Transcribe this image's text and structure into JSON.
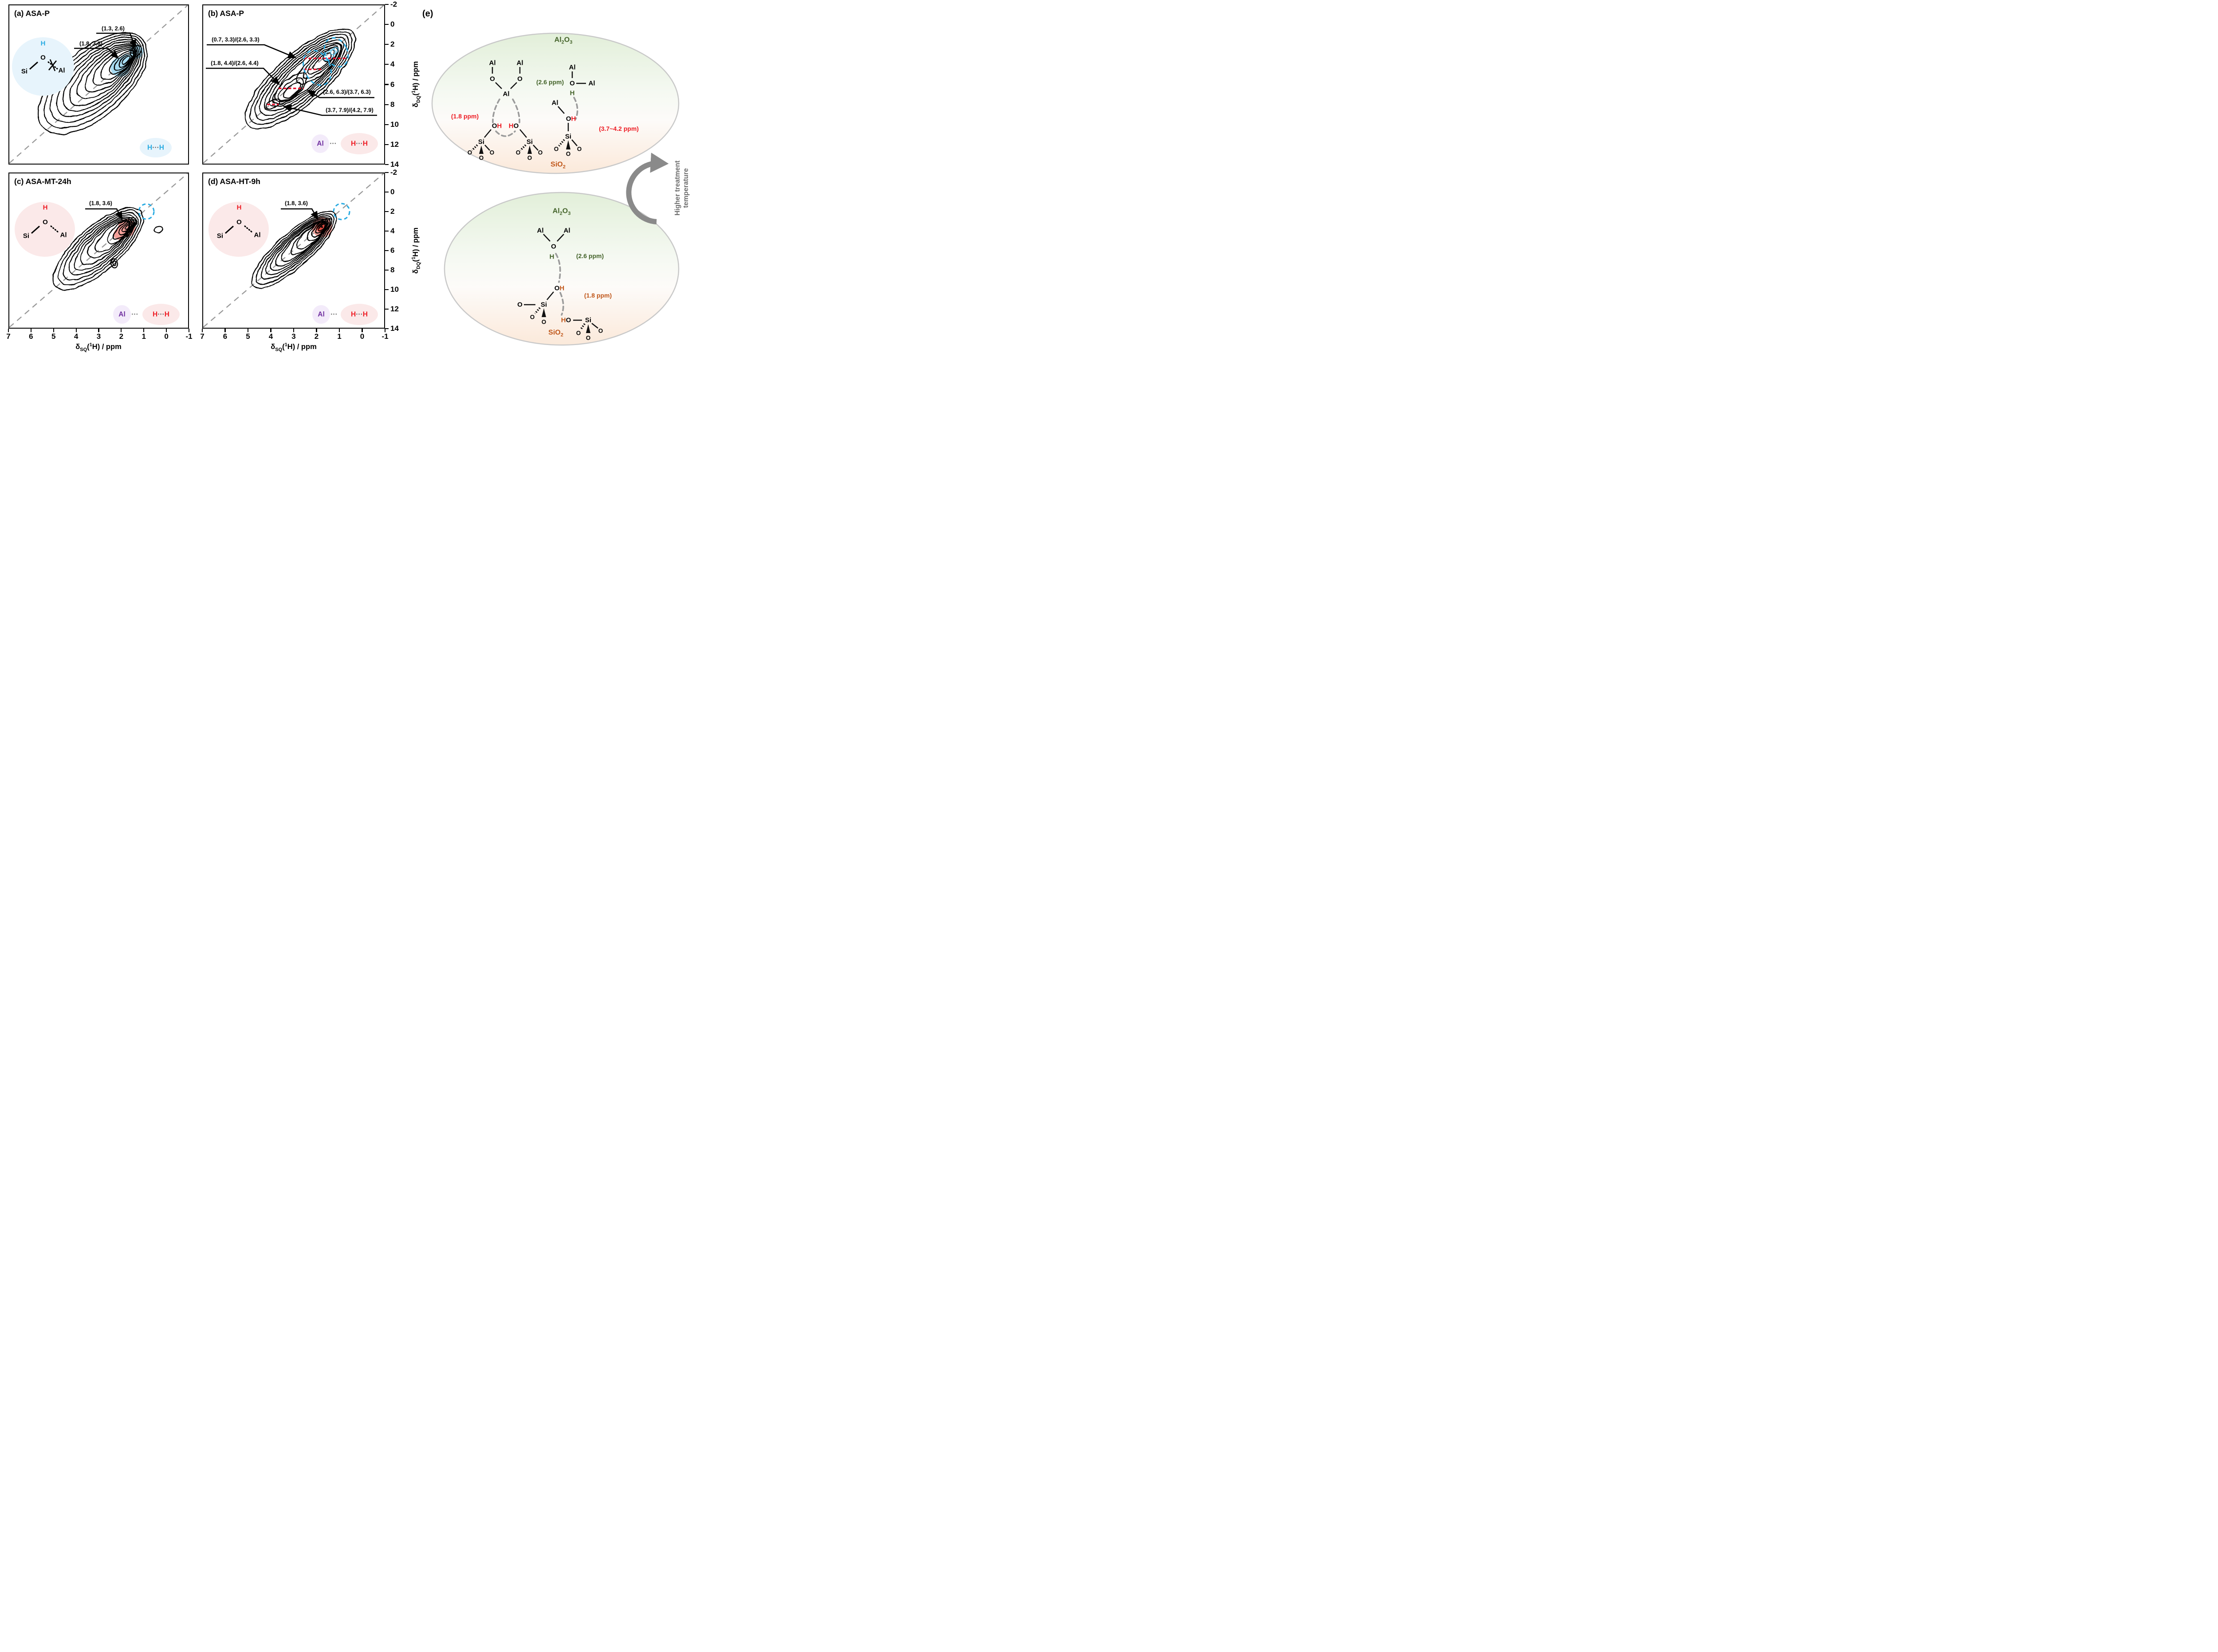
{
  "colors": {
    "cyan": "#29ABE2",
    "red": "#ED1C24",
    "purple": "#7030A0",
    "dark_green": "#44632A",
    "orange": "#C0571A",
    "arrow_gray": "#8A8A8A",
    "peak_blue_fill": "#A8DCF2",
    "peak_pink_fill": "#F4A09A",
    "peak_red_fill": "#DE4A3F",
    "inset_blue_bg": "#E7F4FC",
    "inset_pink_bg": "#FBE9E9",
    "lavender_bg": "#F3EBFA",
    "dashed_gray": "#999999"
  },
  "axis": {
    "sym": "δ",
    "x_sub": "SQ",
    "y_sub": "DQ",
    "open": "(",
    "sup": "1",
    "close": "H) / ppm"
  },
  "nmr": {
    "x_ticks": [
      7,
      6,
      5,
      4,
      3,
      2,
      1,
      0,
      -1
    ],
    "y_ticks": [
      -2,
      0,
      2,
      4,
      6,
      8,
      10,
      12,
      14
    ]
  },
  "sym": {
    "h": "H",
    "al": "Al",
    "si": "Si",
    "o": "O",
    "dots": "···"
  },
  "chart_data": [
    {
      "id": "a",
      "type": "contour",
      "title": "(a) ASA-P",
      "xlabel": "dSQ(1H) / ppm",
      "ylabel": "dDQ(1H) / ppm",
      "xlim": [
        7,
        -1
      ],
      "ylim": [
        -2,
        14
      ],
      "grid": false,
      "diagonal": "dDQ = 2 x dSQ (dashed)",
      "annotations": [
        {
          "label": "(1.3, 2.6)",
          "sq": 1.3,
          "dq": 2.6
        },
        {
          "label": "(1.8, 3.6)",
          "sq": 1.8,
          "dq": 3.6
        }
      ],
      "highlighted_peaks": [
        [
          1.3,
          2.6
        ],
        [
          1.8,
          3.6
        ]
      ],
      "inset_atoms": [
        "H",
        "O",
        "Si",
        "Al"
      ],
      "legend": "H···H"
    },
    {
      "id": "b",
      "type": "contour",
      "title": "(b) ASA-P",
      "xlabel": "dSQ(1H) / ppm",
      "ylabel": "dDQ(1H) / ppm",
      "xlim": [
        7,
        -1
      ],
      "ylim": [
        -2,
        14
      ],
      "grid": false,
      "annotations": [
        {
          "label": "(0.7, 3.3)/(2.6, 3.3)",
          "pairs": [
            [
              0.7,
              3.3
            ],
            [
              2.6,
              3.3
            ]
          ]
        },
        {
          "label": "(1.8, 4.4)/(2.6, 4.4)",
          "pairs": [
            [
              1.8,
              4.4
            ],
            [
              2.6,
              4.4
            ]
          ]
        },
        {
          "label": "(2.6, 6.3)/(3.7, 6.3)",
          "pairs": [
            [
              2.6,
              6.3
            ],
            [
              3.7,
              6.3
            ]
          ]
        },
        {
          "label": "(3.7, 7.9)/(4.2, 7.9)",
          "pairs": [
            [
              3.7,
              7.9
            ],
            [
              4.2,
              7.9
            ]
          ]
        }
      ],
      "legend": "Al ··· H···H"
    },
    {
      "id": "c",
      "type": "contour",
      "title": "(c) ASA-MT-24h",
      "xlabel": "dSQ(1H) / ppm",
      "ylabel": "dDQ(1H) / ppm",
      "xlim": [
        7,
        -1
      ],
      "ylim": [
        -2,
        14
      ],
      "grid": false,
      "annotations": [
        {
          "label": "(1.8, 3.6)",
          "sq": 1.8,
          "dq": 3.6
        }
      ],
      "highlighted_peaks": [
        [
          1.8,
          3.6
        ]
      ],
      "inset_atoms": [
        "H",
        "O",
        "Si",
        "Al"
      ],
      "legend": "Al ··· H···H"
    },
    {
      "id": "d",
      "type": "contour",
      "title": "(d) ASA-HT-9h",
      "xlabel": "dSQ(1H) / ppm",
      "ylabel": "dDQ(1H) / ppm",
      "xlim": [
        7,
        -1
      ],
      "ylim": [
        -2,
        14
      ],
      "grid": false,
      "annotations": [
        {
          "label": "(1.8, 3.6)",
          "sq": 1.8,
          "dq": 3.6
        }
      ],
      "highlighted_peaks": [
        [
          1.8,
          3.6
        ]
      ],
      "inset_atoms": [
        "H",
        "O",
        "Si",
        "Al"
      ],
      "legend": "Al ··· H···H"
    }
  ],
  "e": {
    "label": "(e)",
    "alumina": {
      "base": "Al",
      "sub1": "2",
      "mid": "O",
      "sub2": "3"
    },
    "silica": {
      "base": "SiO",
      "sub": "2"
    },
    "top_labels": {
      "ppm_18": "(1.8 ppm)",
      "ppm_26": "(2.6 ppm)",
      "ppm_37_42": "(3.7~4.2 ppm)"
    },
    "bottom_labels": {
      "ppm_26": "(2.6 ppm)",
      "ppm_18": "(1.8 ppm)"
    },
    "arrow_text_line1": "Higher treatment",
    "arrow_text_line2": "temperature"
  }
}
